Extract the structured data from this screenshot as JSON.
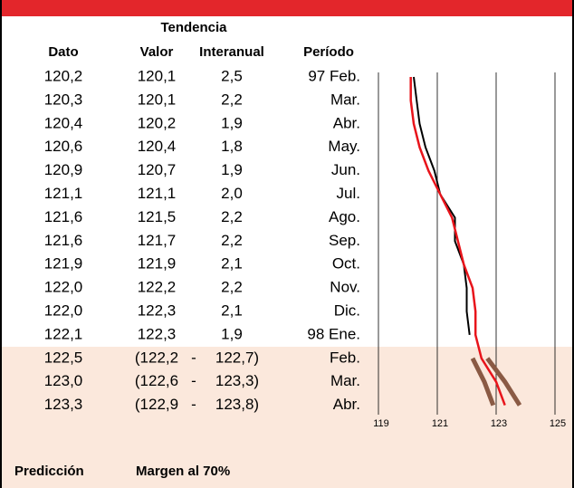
{
  "table": {
    "group_header": "Tendencia",
    "columns": [
      "Dato",
      "Valor",
      "Interanual",
      "Período"
    ],
    "rows": [
      [
        "120,2",
        "120,1",
        "2,5",
        "97 Feb."
      ],
      [
        "120,3",
        "120,1",
        "2,2",
        "Mar."
      ],
      [
        "120,4",
        "120,2",
        "1,9",
        "Abr."
      ],
      [
        "120,6",
        "120,4",
        "1,8",
        "May."
      ],
      [
        "120,9",
        "120,7",
        "1,9",
        "Jun."
      ],
      [
        "121,1",
        "121,1",
        "2,0",
        "Jul."
      ],
      [
        "121,6",
        "121,5",
        "2,2",
        "Ago."
      ],
      [
        "121,6",
        "121,7",
        "2,2",
        "Sep."
      ],
      [
        "121,9",
        "121,9",
        "2,1",
        "Oct."
      ],
      [
        "122,0",
        "122,2",
        "2,2",
        "Nov."
      ],
      [
        "122,0",
        "122,3",
        "2,1",
        "Dic."
      ],
      [
        "122,1",
        "122,3",
        "1,9",
        "98 Ene."
      ],
      [
        "122,5",
        "(122,2",
        "-",
        "122,7)",
        "Feb."
      ],
      [
        "123,0",
        "(122,6",
        "-",
        "123,3)",
        "Mar."
      ],
      [
        "123,3",
        "(122,9",
        "-",
        "123,8)",
        "Abr."
      ]
    ],
    "footer": [
      "Predicción",
      "Margen al 70%"
    ]
  },
  "chart_data": {
    "type": "line",
    "xlim": [
      119,
      125
    ],
    "xticks": [
      119,
      121,
      123,
      125
    ],
    "grid": true,
    "series": [
      {
        "color": "#000000",
        "values": [
          120.2,
          120.3,
          120.4,
          120.6,
          120.9,
          121.1,
          121.6,
          121.6,
          121.9,
          122.0,
          122.0,
          122.1,
          null,
          null,
          null
        ]
      },
      {
        "color": "#e8141b",
        "values": [
          120.1,
          120.1,
          120.2,
          120.4,
          120.7,
          121.1,
          121.5,
          121.7,
          121.9,
          122.2,
          122.3,
          122.3,
          122.5,
          123.0,
          123.3
        ]
      },
      {
        "color": "#8a5a44",
        "values": [
          null,
          null,
          null,
          null,
          null,
          null,
          null,
          null,
          null,
          null,
          null,
          null,
          122.2,
          122.6,
          122.9
        ]
      },
      {
        "color": "#8a5a44",
        "values": [
          null,
          null,
          null,
          null,
          null,
          null,
          null,
          null,
          null,
          null,
          null,
          null,
          122.7,
          123.3,
          123.8
        ]
      }
    ]
  }
}
